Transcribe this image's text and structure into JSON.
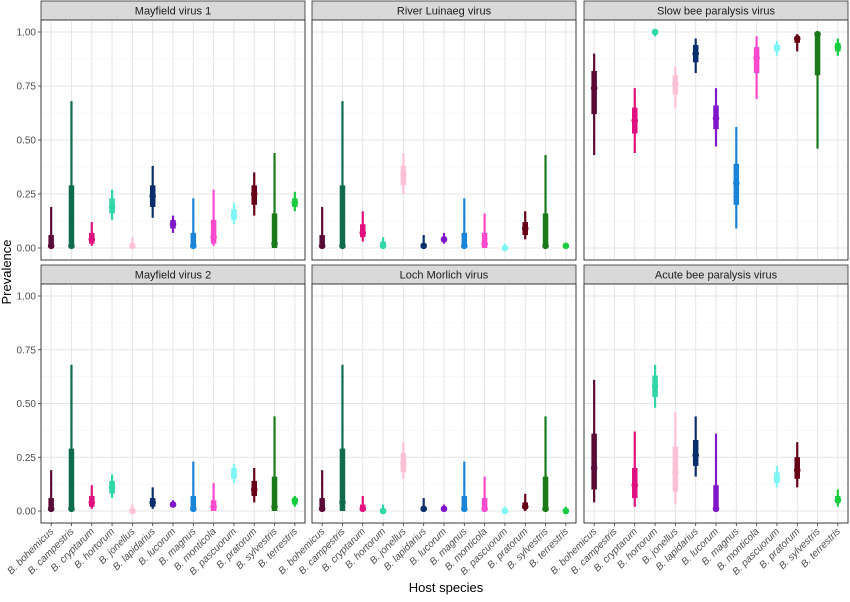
{
  "chart_data": {
    "type": "interval",
    "xlabel": "Host species",
    "ylabel": "Prevalence",
    "ylim": [
      0,
      1
    ],
    "yticks": [
      0,
      0.25,
      0.5,
      0.75,
      1
    ],
    "ytick_labels": [
      "0.00",
      "0.25",
      "0.50",
      "0.75",
      "1.00"
    ],
    "categories": [
      "B. bohemicus",
      "B. campestris",
      "B. cryptarum",
      "B. hortorum",
      "B. jonellus",
      "B. lapidarius",
      "B. lucorum",
      "B. magnus",
      "B. monticola",
      "B. pascuorum",
      "B. pratorum",
      "B. sylvestris",
      "B. terrestris"
    ],
    "colors": [
      "#5a0a37",
      "#0f6b4e",
      "#e0107f",
      "#2fd6a8",
      "#ffc0d8",
      "#0a2e6b",
      "#7f18c8",
      "#1a84d8",
      "#ff4ad0",
      "#7ff5f5",
      "#660016",
      "#1a7a1a",
      "#18cc40"
    ],
    "grid": true,
    "legend": "none",
    "panels": [
      {
        "title": "Mayfield virus 1",
        "estimates": [
          {
            "category": "B. bohemicus",
            "point": 0.01,
            "inner": [
              0.0,
              0.06
            ],
            "outer": [
              0.0,
              0.19
            ]
          },
          {
            "category": "B. campestris",
            "point": 0.01,
            "inner": [
              0.0,
              0.29
            ],
            "outer": [
              0.0,
              0.68
            ]
          },
          {
            "category": "B. cryptarum",
            "point": 0.04,
            "inner": [
              0.02,
              0.07
            ],
            "outer": [
              0.01,
              0.12
            ]
          },
          {
            "category": "B. hortorum",
            "point": 0.19,
            "inner": [
              0.16,
              0.23
            ],
            "outer": [
              0.13,
              0.27
            ]
          },
          {
            "category": "B. jonellus",
            "point": 0.01,
            "inner": [
              0.0,
              0.02
            ],
            "outer": [
              0.0,
              0.05
            ]
          },
          {
            "category": "B. lapidarius",
            "point": 0.24,
            "inner": [
              0.19,
              0.29
            ],
            "outer": [
              0.14,
              0.38
            ]
          },
          {
            "category": "B. lucorum",
            "point": 0.11,
            "inner": [
              0.09,
              0.13
            ],
            "outer": [
              0.07,
              0.15
            ]
          },
          {
            "category": "B. magnus",
            "point": 0.01,
            "inner": [
              0.0,
              0.07
            ],
            "outer": [
              0.0,
              0.23
            ]
          },
          {
            "category": "B. monticola",
            "point": 0.05,
            "inner": [
              0.02,
              0.13
            ],
            "outer": [
              0.01,
              0.27
            ]
          },
          {
            "category": "B. pascuorum",
            "point": 0.15,
            "inner": [
              0.13,
              0.18
            ],
            "outer": [
              0.11,
              0.21
            ]
          },
          {
            "category": "B. pratorum",
            "point": 0.25,
            "inner": [
              0.2,
              0.29
            ],
            "outer": [
              0.15,
              0.35
            ]
          },
          {
            "category": "B. sylvestris",
            "point": 0.02,
            "inner": [
              0.0,
              0.16
            ],
            "outer": [
              0.0,
              0.44
            ]
          },
          {
            "category": "B. terrestris",
            "point": 0.21,
            "inner": [
              0.19,
              0.23
            ],
            "outer": [
              0.17,
              0.26
            ]
          }
        ]
      },
      {
        "title": "River Luinaeg virus",
        "estimates": [
          {
            "category": "B. bohemicus",
            "point": 0.01,
            "inner": [
              0.0,
              0.06
            ],
            "outer": [
              0.0,
              0.19
            ]
          },
          {
            "category": "B. campestris",
            "point": 0.01,
            "inner": [
              0.0,
              0.29
            ],
            "outer": [
              0.0,
              0.68
            ]
          },
          {
            "category": "B. cryptarum",
            "point": 0.07,
            "inner": [
              0.05,
              0.11
            ],
            "outer": [
              0.03,
              0.17
            ]
          },
          {
            "category": "B. hortorum",
            "point": 0.01,
            "inner": [
              0.0,
              0.03
            ],
            "outer": [
              0.0,
              0.05
            ]
          },
          {
            "category": "B. jonellus",
            "point": 0.34,
            "inner": [
              0.29,
              0.38
            ],
            "outer": [
              0.25,
              0.44
            ]
          },
          {
            "category": "B. lapidarius",
            "point": 0.01,
            "inner": [
              0.0,
              0.02
            ],
            "outer": [
              0.0,
              0.06
            ]
          },
          {
            "category": "B. lucorum",
            "point": 0.04,
            "inner": [
              0.03,
              0.05
            ],
            "outer": [
              0.02,
              0.07
            ]
          },
          {
            "category": "B. magnus",
            "point": 0.01,
            "inner": [
              0.0,
              0.07
            ],
            "outer": [
              0.0,
              0.23
            ]
          },
          {
            "category": "B. monticola",
            "point": 0.02,
            "inner": [
              0.0,
              0.07
            ],
            "outer": [
              0.0,
              0.16
            ]
          },
          {
            "category": "B. pascuorum",
            "point": 0.0,
            "inner": [
              0.0,
              0.01
            ],
            "outer": [
              0.0,
              0.02
            ]
          },
          {
            "category": "B. pratorum",
            "point": 0.09,
            "inner": [
              0.06,
              0.12
            ],
            "outer": [
              0.04,
              0.17
            ]
          },
          {
            "category": "B. sylvestris",
            "point": 0.01,
            "inner": [
              0.0,
              0.16
            ],
            "outer": [
              0.0,
              0.43
            ]
          },
          {
            "category": "B. terrestris",
            "point": 0.01,
            "inner": [
              0.0,
              0.01
            ],
            "outer": [
              0.0,
              0.02
            ]
          }
        ]
      },
      {
        "title": "Slow bee paralysis virus",
        "estimates": [
          {
            "category": "B. bohemicus",
            "point": 0.74,
            "inner": [
              0.62,
              0.82
            ],
            "outer": [
              0.43,
              0.9
            ]
          },
          {
            "category": "B. campestris",
            "point": null,
            "inner": null,
            "outer": null
          },
          {
            "category": "B. cryptarum",
            "point": 0.59,
            "inner": [
              0.53,
              0.65
            ],
            "outer": [
              0.44,
              0.74
            ]
          },
          {
            "category": "B. hortorum",
            "point": 1.0,
            "inner": [
              0.99,
              1.0
            ],
            "outer": [
              0.98,
              1.0
            ]
          },
          {
            "category": "B. jonellus",
            "point": 0.76,
            "inner": [
              0.71,
              0.8
            ],
            "outer": [
              0.65,
              0.84
            ]
          },
          {
            "category": "B. lapidarius",
            "point": 0.9,
            "inner": [
              0.86,
              0.94
            ],
            "outer": [
              0.81,
              0.97
            ]
          },
          {
            "category": "B. lucorum",
            "point": 0.6,
            "inner": [
              0.55,
              0.66
            ],
            "outer": [
              0.47,
              0.74
            ]
          },
          {
            "category": "B. magnus",
            "point": 0.3,
            "inner": [
              0.2,
              0.39
            ],
            "outer": [
              0.09,
              0.56
            ]
          },
          {
            "category": "B. monticola",
            "point": 0.88,
            "inner": [
              0.81,
              0.93
            ],
            "outer": [
              0.69,
              0.98
            ]
          },
          {
            "category": "B. pascuorum",
            "point": 0.93,
            "inner": [
              0.91,
              0.94
            ],
            "outer": [
              0.89,
              0.96
            ]
          },
          {
            "category": "B. pratorum",
            "point": 0.97,
            "inner": [
              0.95,
              0.98
            ],
            "outer": [
              0.91,
              0.99
            ]
          },
          {
            "category": "B. sylvestris",
            "point": 0.99,
            "inner": [
              0.8,
              1.0
            ],
            "outer": [
              0.46,
              1.0
            ]
          },
          {
            "category": "B. terrestris",
            "point": 0.93,
            "inner": [
              0.91,
              0.95
            ],
            "outer": [
              0.89,
              0.97
            ]
          }
        ]
      },
      {
        "title": "Mayfield virus 2",
        "estimates": [
          {
            "category": "B. bohemicus",
            "point": 0.01,
            "inner": [
              0.0,
              0.06
            ],
            "outer": [
              0.0,
              0.19
            ]
          },
          {
            "category": "B. campestris",
            "point": 0.01,
            "inner": [
              0.0,
              0.29
            ],
            "outer": [
              0.0,
              0.68
            ]
          },
          {
            "category": "B. cryptarum",
            "point": 0.04,
            "inner": [
              0.02,
              0.07
            ],
            "outer": [
              0.01,
              0.12
            ]
          },
          {
            "category": "B. hortorum",
            "point": 0.11,
            "inner": [
              0.08,
              0.14
            ],
            "outer": [
              0.06,
              0.17
            ]
          },
          {
            "category": "B. jonellus",
            "point": 0.0,
            "inner": [
              0.0,
              0.01
            ],
            "outer": [
              0.0,
              0.03
            ]
          },
          {
            "category": "B. lapidarius",
            "point": 0.04,
            "inner": [
              0.02,
              0.06
            ],
            "outer": [
              0.01,
              0.11
            ]
          },
          {
            "category": "B. lucorum",
            "point": 0.03,
            "inner": [
              0.02,
              0.04
            ],
            "outer": [
              0.02,
              0.05
            ]
          },
          {
            "category": "B. magnus",
            "point": 0.01,
            "inner": [
              0.0,
              0.07
            ],
            "outer": [
              0.0,
              0.23
            ]
          },
          {
            "category": "B. monticola",
            "point": 0.02,
            "inner": [
              0.0,
              0.05
            ],
            "outer": [
              0.0,
              0.13
            ]
          },
          {
            "category": "B. pascuorum",
            "point": 0.17,
            "inner": [
              0.15,
              0.2
            ],
            "outer": [
              0.13,
              0.22
            ]
          },
          {
            "category": "B. pratorum",
            "point": 0.1,
            "inner": [
              0.07,
              0.14
            ],
            "outer": [
              0.04,
              0.2
            ]
          },
          {
            "category": "B. sylvestris",
            "point": 0.02,
            "inner": [
              0.0,
              0.16
            ],
            "outer": [
              0.0,
              0.44
            ]
          },
          {
            "category": "B. terrestris",
            "point": 0.05,
            "inner": [
              0.03,
              0.06
            ],
            "outer": [
              0.02,
              0.07
            ]
          }
        ]
      },
      {
        "title": "Loch Morlich virus",
        "estimates": [
          {
            "category": "B. bohemicus",
            "point": 0.01,
            "inner": [
              0.0,
              0.06
            ],
            "outer": [
              0.0,
              0.19
            ]
          },
          {
            "category": "B. campestris",
            "point": 0.04,
            "inner": [
              0.0,
              0.29
            ],
            "outer": [
              0.0,
              0.68
            ]
          },
          {
            "category": "B. cryptarum",
            "point": 0.01,
            "inner": [
              0.0,
              0.03
            ],
            "outer": [
              0.0,
              0.07
            ]
          },
          {
            "category": "B. hortorum",
            "point": 0.0,
            "inner": [
              0.0,
              0.01
            ],
            "outer": [
              0.0,
              0.03
            ]
          },
          {
            "category": "B. jonellus",
            "point": 0.22,
            "inner": [
              0.18,
              0.27
            ],
            "outer": [
              0.15,
              0.32
            ]
          },
          {
            "category": "B. lapidarius",
            "point": 0.01,
            "inner": [
              0.0,
              0.02
            ],
            "outer": [
              0.0,
              0.06
            ]
          },
          {
            "category": "B. lucorum",
            "point": 0.01,
            "inner": [
              0.0,
              0.02
            ],
            "outer": [
              0.0,
              0.03
            ]
          },
          {
            "category": "B. magnus",
            "point": 0.01,
            "inner": [
              0.0,
              0.07
            ],
            "outer": [
              0.0,
              0.23
            ]
          },
          {
            "category": "B. monticola",
            "point": 0.01,
            "inner": [
              0.0,
              0.06
            ],
            "outer": [
              0.0,
              0.16
            ]
          },
          {
            "category": "B. pascuorum",
            "point": 0.0,
            "inner": [
              0.0,
              0.01
            ],
            "outer": [
              0.0,
              0.02
            ]
          },
          {
            "category": "B. pratorum",
            "point": 0.02,
            "inner": [
              0.01,
              0.04
            ],
            "outer": [
              0.0,
              0.08
            ]
          },
          {
            "category": "B. sylvestris",
            "point": 0.01,
            "inner": [
              0.0,
              0.16
            ],
            "outer": [
              0.0,
              0.44
            ]
          },
          {
            "category": "B. terrestris",
            "point": 0.0,
            "inner": [
              0.0,
              0.01
            ],
            "outer": [
              0.0,
              0.02
            ]
          }
        ]
      },
      {
        "title": "Acute bee paralysis virus",
        "estimates": [
          {
            "category": "B. bohemicus",
            "point": 0.2,
            "inner": [
              0.1,
              0.36
            ],
            "outer": [
              0.04,
              0.61
            ]
          },
          {
            "category": "B. campestris",
            "point": null,
            "inner": null,
            "outer": null
          },
          {
            "category": "B. cryptarum",
            "point": 0.12,
            "inner": [
              0.06,
              0.2
            ],
            "outer": [
              0.02,
              0.37
            ]
          },
          {
            "category": "B. hortorum",
            "point": 0.58,
            "inner": [
              0.53,
              0.63
            ],
            "outer": [
              0.48,
              0.68
            ]
          },
          {
            "category": "B. jonellus",
            "point": 0.18,
            "inner": [
              0.09,
              0.3
            ],
            "outer": [
              0.03,
              0.46
            ]
          },
          {
            "category": "B. lapidarius",
            "point": 0.26,
            "inner": [
              0.21,
              0.33
            ],
            "outer": [
              0.16,
              0.44
            ]
          },
          {
            "category": "B. lucorum",
            "point": 0.01,
            "inner": [
              0.0,
              0.12
            ],
            "outer": [
              0.0,
              0.36
            ]
          },
          {
            "category": "B. magnus",
            "point": null,
            "inner": null,
            "outer": null
          },
          {
            "category": "B. monticola",
            "point": null,
            "inner": null,
            "outer": null
          },
          {
            "category": "B. pascuorum",
            "point": 0.15,
            "inner": [
              0.13,
              0.18
            ],
            "outer": [
              0.11,
              0.21
            ]
          },
          {
            "category": "B. pratorum",
            "point": 0.19,
            "inner": [
              0.15,
              0.25
            ],
            "outer": [
              0.11,
              0.32
            ]
          },
          {
            "category": "B. sylvestris",
            "point": null,
            "inner": null,
            "outer": null
          },
          {
            "category": "B. terrestris",
            "point": 0.05,
            "inner": [
              0.04,
              0.07
            ],
            "outer": [
              0.02,
              0.1
            ]
          }
        ]
      }
    ]
  }
}
